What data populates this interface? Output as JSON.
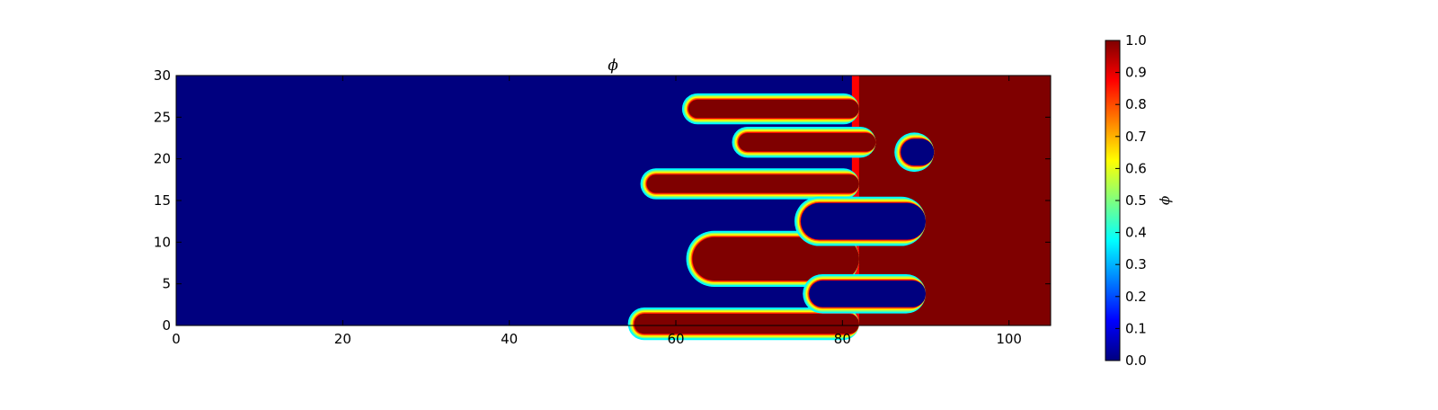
{
  "chart_data": {
    "type": "heatmap",
    "title": "ϕ",
    "xlabel": "",
    "ylabel": "",
    "xlim": [
      0,
      105
    ],
    "ylim": [
      0,
      30
    ],
    "x_ticks": [
      "0",
      "20",
      "40",
      "60",
      "80",
      "100"
    ],
    "y_ticks": [
      "0",
      "5",
      "10",
      "15",
      "20",
      "25",
      "30"
    ],
    "colormap": "jet",
    "colorbar": {
      "label": "ϕ",
      "range": [
        0.0,
        1.0
      ],
      "ticks": [
        "0.0",
        "0.1",
        "0.2",
        "0.3",
        "0.4",
        "0.5",
        "0.6",
        "0.7",
        "0.8",
        "0.9",
        "1.0"
      ]
    },
    "field": {
      "background_value": 0.0,
      "saturated_value": 1.0,
      "right_region": {
        "x_from": 82,
        "x_to": 105,
        "value": 1.0
      },
      "fingers": [
        {
          "kind": "fill",
          "x_tip": 56.5,
          "x_base": 82,
          "y_center": 17.0,
          "half_width": 1.1,
          "sign_dir": 1
        },
        {
          "kind": "fill",
          "x_tip": 61.5,
          "x_base": 82,
          "y_center": 26.0,
          "half_width": 1.1
        },
        {
          "kind": "fill",
          "x_tip": 67.5,
          "x_base": 84,
          "y_center": 22.0,
          "half_width": 1.1
        },
        {
          "kind": "fill",
          "x_tip": 62.0,
          "x_base": 82,
          "y_center": 8.0,
          "half_width": 2.6
        },
        {
          "kind": "fill",
          "x_tip": 55.0,
          "x_base": 82,
          "y_center": 0.2,
          "half_width": 1.2
        },
        {
          "kind": "hole",
          "x_tip": 75.0,
          "x_base": 90,
          "y_center": 12.5,
          "half_width": 2.2
        },
        {
          "kind": "hole",
          "x_tip": 76.0,
          "x_base": 90,
          "y_center": 3.8,
          "half_width": 1.6
        },
        {
          "kind": "hole",
          "x_tip": 87.0,
          "x_base": 91,
          "y_center": 20.8,
          "half_width": 1.6
        }
      ]
    }
  },
  "colors": {
    "jet": [
      "#00007f",
      "#0000ff",
      "#007fff",
      "#00ffff",
      "#7fff7f",
      "#ffff00",
      "#ff7f00",
      "#ff0000",
      "#7f0000"
    ]
  }
}
